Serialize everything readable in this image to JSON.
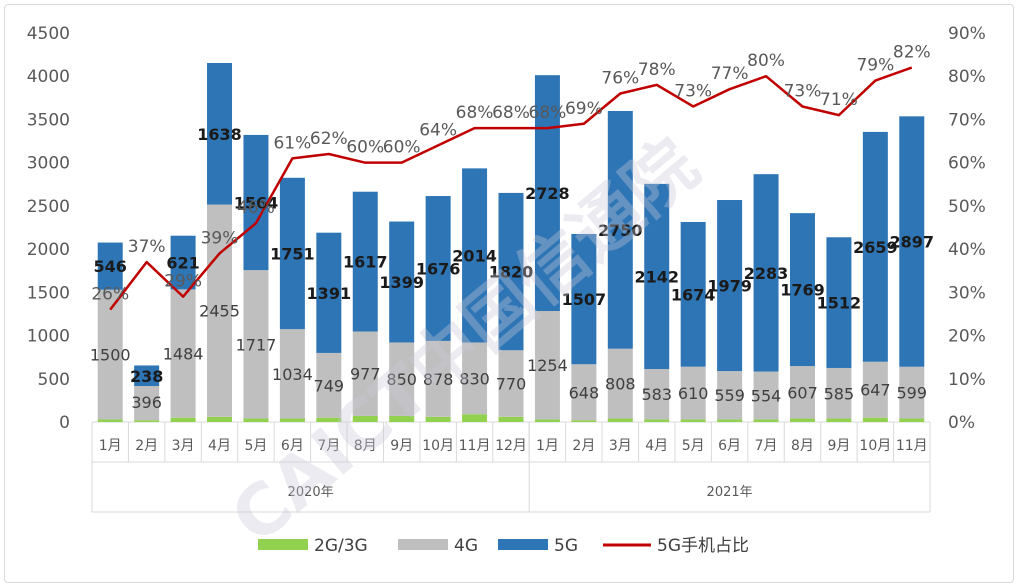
{
  "watermark": "CAICT中国信通院",
  "chart_data": {
    "type": "bar",
    "stacked": true,
    "categories": [
      "1月",
      "2月",
      "3月",
      "4月",
      "5月",
      "6月",
      "7月",
      "8月",
      "9月",
      "10月",
      "11月",
      "12月",
      "1月",
      "2月",
      "3月",
      "4月",
      "5月",
      "6月",
      "7月",
      "8月",
      "9月",
      "10月",
      "11月"
    ],
    "groups": [
      {
        "label": "2020年",
        "count": 12
      },
      {
        "label": "2021年",
        "count": 11
      }
    ],
    "series": [
      {
        "name": "2G/3G",
        "color": "#92d050",
        "values": [
          30,
          20,
          50,
          60,
          40,
          40,
          50,
          70,
          70,
          60,
          90,
          60,
          30,
          20,
          40,
          30,
          30,
          30,
          30,
          40,
          40,
          50,
          40
        ]
      },
      {
        "name": "4G",
        "color": "#bfbfbf",
        "values": [
          1500,
          396,
          1484,
          2455,
          1717,
          1034,
          749,
          977,
          850,
          878,
          830,
          770,
          1254,
          648,
          808,
          583,
          610,
          559,
          554,
          607,
          585,
          647,
          599
        ]
      },
      {
        "name": "5G",
        "color": "#2e75b6",
        "values": [
          546,
          238,
          621,
          1638,
          1564,
          1751,
          1391,
          1617,
          1399,
          1676,
          2014,
          1820,
          2728,
          1507,
          2750,
          2142,
          1674,
          1979,
          2283,
          1769,
          1512,
          2659,
          2897
        ]
      }
    ],
    "line": {
      "name": "5G手机占比",
      "color": "#c00000",
      "values": [
        26,
        37,
        29,
        39,
        46,
        61,
        62,
        60,
        60,
        64,
        68,
        68,
        68,
        69,
        76,
        78,
        73,
        77,
        80,
        73,
        71,
        79,
        82
      ]
    },
    "labels_4g": [
      "1500",
      "396",
      "1484",
      "2455",
      "1717",
      "1034",
      "749",
      "977",
      "850",
      "878",
      "830",
      "770",
      "1254",
      "648",
      "808",
      "583",
      "610",
      "559",
      "554",
      "607",
      "585",
      "647",
      "599"
    ],
    "labels_5g": [
      "546",
      "238",
      "621",
      "1638",
      "1564",
      "1751",
      "1391",
      "1617",
      "1399",
      "1676",
      "2014",
      "1820",
      "2728",
      "1507",
      "2750",
      "2142",
      "1674",
      "1979",
      "2283",
      "1769",
      "1512",
      "2659",
      "2897"
    ],
    "labels_pct": [
      "26%",
      "37%",
      "29%",
      "39%",
      "46%",
      "61%",
      "62%",
      "60%",
      "60%",
      "64%",
      "68%",
      "68%",
      "68%",
      "69%",
      "76%",
      "78%",
      "73%",
      "77%",
      "80%",
      "73%",
      "71%",
      "79%",
      "82%"
    ],
    "y_left": {
      "min": 0,
      "max": 4500,
      "ticks": [
        "0",
        "500",
        "1000",
        "1500",
        "2000",
        "2500",
        "3000",
        "3500",
        "4000",
        "4500"
      ]
    },
    "y_right": {
      "min": 0,
      "max": 90,
      "ticks": [
        "0%",
        "10%",
        "20%",
        "30%",
        "40%",
        "50%",
        "60%",
        "70%",
        "80%",
        "90%"
      ]
    },
    "legend": [
      "2G/3G",
      "4G",
      "5G",
      "5G手机占比"
    ],
    "legend_position": "bottom"
  }
}
